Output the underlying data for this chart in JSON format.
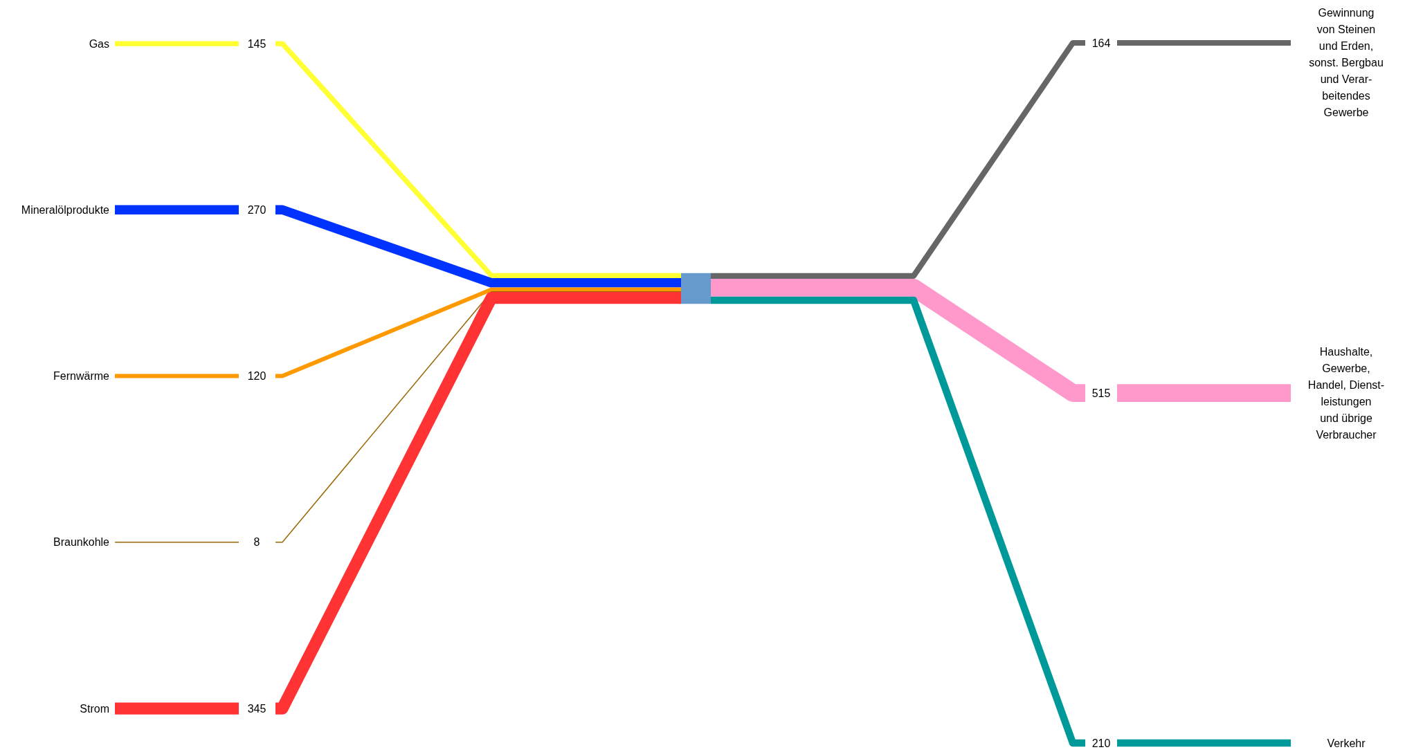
{
  "chart_data": [
    {
      "type": "other",
      "color": "#6699cc",
      "data_labels": true,
      "categories": [
        "Gas",
        "Mineralölprodukte",
        "Fernwärme",
        "Braunkohle",
        "Strom"
      ],
      "values": [
        145,
        270,
        120,
        8,
        345
      ],
      "colors": [
        "#ffff33",
        "#0033ff",
        "#ff9900",
        "#996600",
        "#ff3333"
      ]
    },
    {
      "type": "other",
      "data_labels": true,
      "categories": [
        "Gewinnung\nvon Steinen\nund Erden,\nsonst. Bergbau\nund Verar-\nbeitendes\nGewerbe",
        "Haushalte,\nGewerbe,\nHandel, Dienst-\nleistungen\nund übrige\nVerbraucher",
        "Verkehr"
      ],
      "values": [
        164,
        515,
        210
      ],
      "colors": [
        "#666666",
        "#ff99cc",
        "#009999"
      ]
    }
  ]
}
